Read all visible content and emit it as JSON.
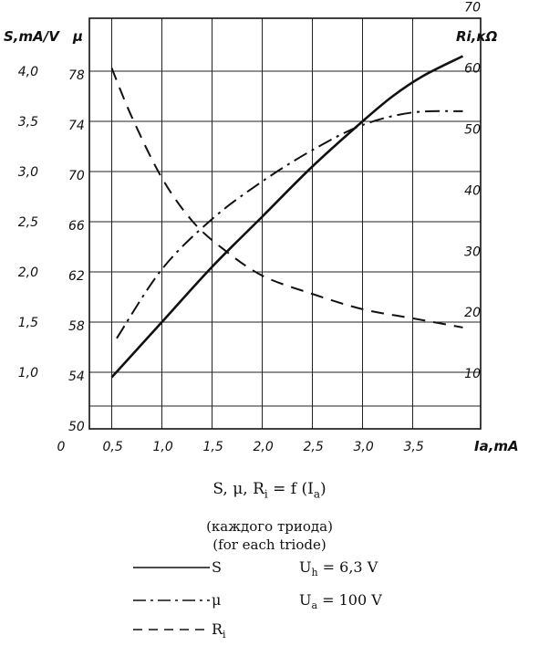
{
  "chart_data": {
    "type": "line",
    "x_axis": {
      "label": "Ia,mA",
      "ticks": [
        0,
        0.5,
        1.0,
        1.5,
        2.0,
        2.5,
        3.0,
        3.5
      ],
      "tick_labels": [
        "0",
        "0,5",
        "1,0",
        "1,5",
        "2,0",
        "2,5",
        "3,0",
        "3,5"
      ],
      "range": [
        0,
        4.0
      ]
    },
    "left_axis_S": {
      "label": "S,mA/V",
      "ticks": [
        1.0,
        1.5,
        2.0,
        2.5,
        3.0,
        3.5,
        4.0
      ],
      "tick_labels": [
        "1,0",
        "1,5",
        "2,0",
        "2,5",
        "3,0",
        "3,5",
        "4,0"
      ],
      "range": [
        0.5,
        4.25
      ]
    },
    "left_axis_mu": {
      "label": "μ",
      "ticks": [
        50,
        54,
        58,
        62,
        66,
        70,
        74,
        78
      ],
      "tick_labels": [
        "50",
        "54",
        "58",
        "62",
        "66",
        "70",
        "74",
        "78"
      ],
      "range": [
        50,
        80
      ]
    },
    "right_axis_Ri": {
      "label": "Ri,кΩ",
      "ticks": [
        10,
        20,
        30,
        40,
        50,
        60,
        70
      ],
      "tick_labels": [
        "10",
        "20",
        "30",
        "40",
        "50",
        "60",
        "70"
      ],
      "range": [
        0,
        75
      ]
    },
    "grid": true,
    "series": [
      {
        "name": "S",
        "axis": "left_axis_S",
        "style": "solid",
        "points": [
          [
            0.5,
            0.95
          ],
          [
            1.0,
            1.5
          ],
          [
            1.5,
            2.05
          ],
          [
            2.0,
            2.55
          ],
          [
            2.5,
            3.05
          ],
          [
            3.0,
            3.5
          ],
          [
            3.3,
            3.75
          ],
          [
            3.6,
            3.95
          ],
          [
            4.0,
            4.15
          ]
        ]
      },
      {
        "name": "μ",
        "axis": "left_axis_mu",
        "style": "dashdot",
        "points": [
          [
            0.55,
            57.0
          ],
          [
            1.0,
            62.5
          ],
          [
            1.5,
            66.5
          ],
          [
            2.0,
            69.5
          ],
          [
            2.5,
            72.0
          ],
          [
            3.0,
            74.0
          ],
          [
            3.5,
            75.0
          ],
          [
            4.0,
            75.1
          ]
        ]
      },
      {
        "name": "Ri",
        "axis": "right_axis_Ri",
        "style": "dashed",
        "points": [
          [
            0.5,
            60.0
          ],
          [
            0.7,
            52.0
          ],
          [
            1.0,
            42.0
          ],
          [
            1.3,
            35.0
          ],
          [
            1.6,
            30.5
          ],
          [
            2.0,
            26.0
          ],
          [
            2.5,
            23.0
          ],
          [
            3.0,
            20.5
          ],
          [
            3.5,
            19.0
          ],
          [
            4.0,
            17.5
          ]
        ]
      }
    ]
  },
  "caption": {
    "formula_main": "S, μ, R",
    "formula_sub": "i",
    "formula_rest": " = f (I",
    "formula_sub2": "a",
    "formula_end": ")",
    "note_ru": "(каждого триода)",
    "note_en": "(for each triode)"
  },
  "legend": [
    {
      "line": "solid",
      "name": "S",
      "name_sub": "",
      "cond": "U",
      "cond_sub": "h",
      "cond_rest": " = 6,3 V"
    },
    {
      "line": "dashdot",
      "name": "μ",
      "name_sub": "",
      "cond": "U",
      "cond_sub": "a",
      "cond_rest": " = 100 V"
    },
    {
      "line": "dashed",
      "name": "R",
      "name_sub": "i",
      "cond": "",
      "cond_sub": "",
      "cond_rest": ""
    }
  ]
}
